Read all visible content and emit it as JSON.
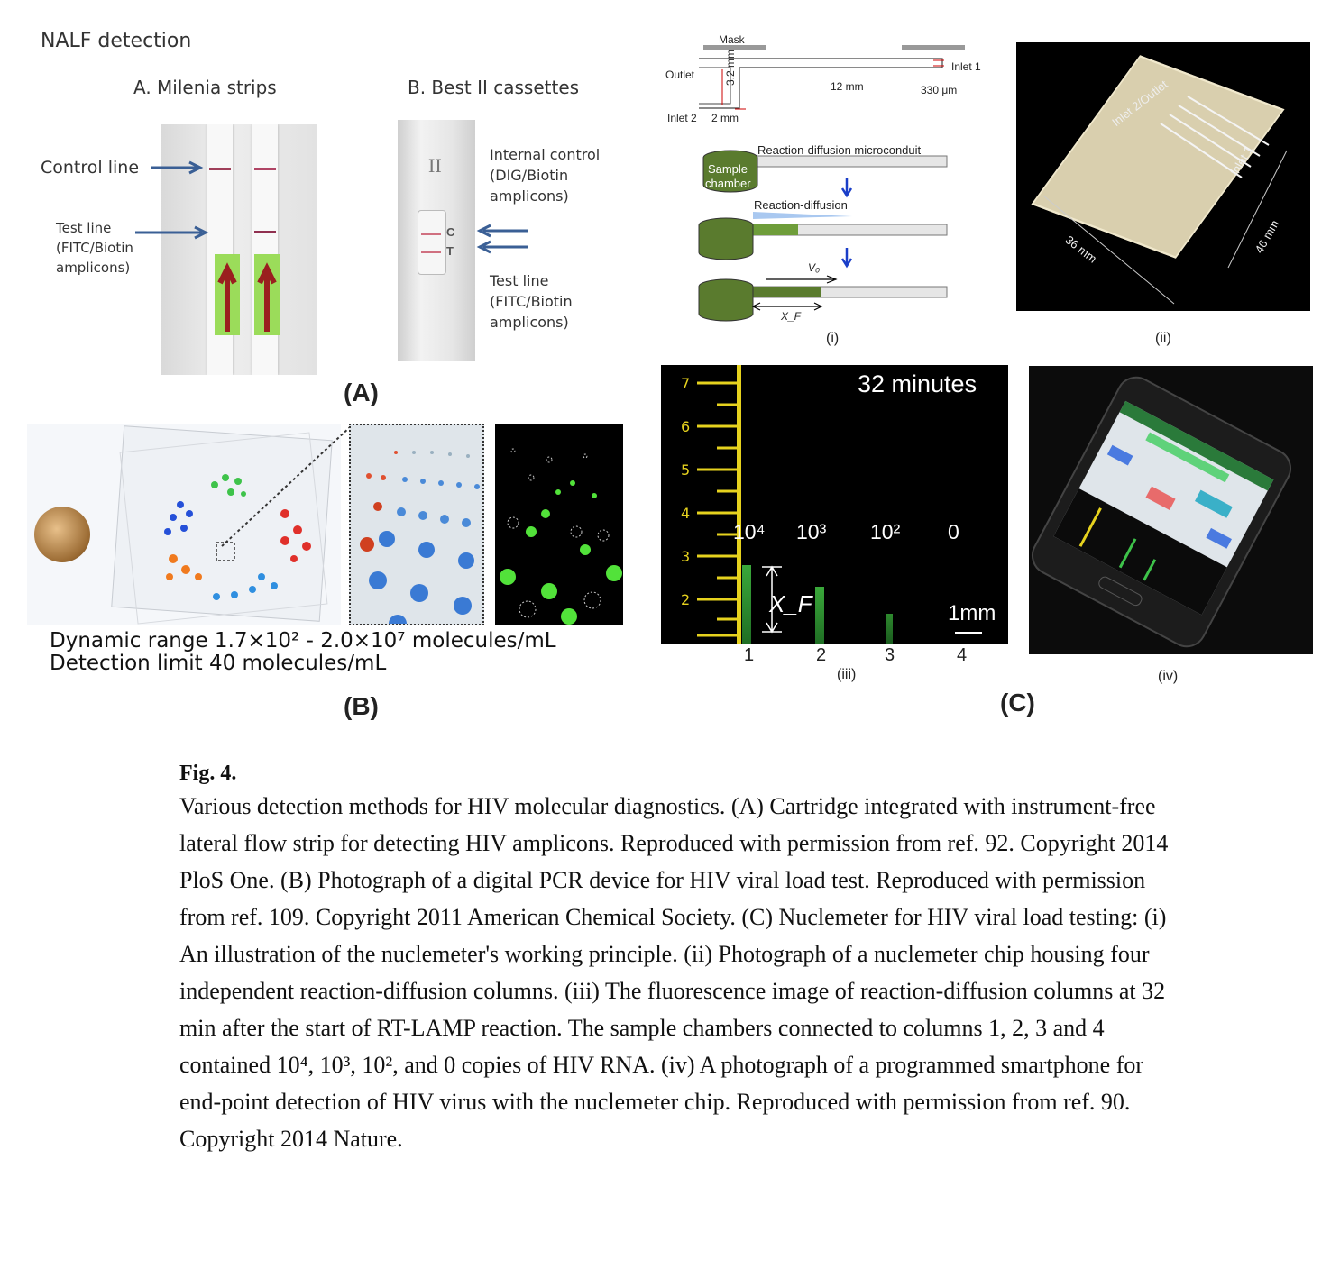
{
  "panel_a": {
    "title": "NALF detection",
    "sub_a": "A. Milenia strips",
    "sub_b": "B. Best II cassettes",
    "control_line": "Control line",
    "test_line_l1": "Test line",
    "test_line_l2": "(FITC/Biotin",
    "test_line_l3": "amplicons)",
    "internal_l1": "Internal control",
    "internal_l2": "(DIG/Biotin",
    "internal_l3": "amplicons)",
    "test2_l1": "Test line",
    "test2_l2": "(FITC/Biotin",
    "test2_l3": "amplicons)",
    "cassette_mark": "II",
    "c_mark": "C",
    "t_mark": "T",
    "letter": "(A)"
  },
  "panel_b": {
    "dynamic_range": "Dynamic range 1.7×10² - 2.0×10⁷ molecules/mL",
    "detection_limit": "Detection limit 40 molecules/mL",
    "letter": "(B)"
  },
  "panel_c": {
    "mask": "Mask",
    "outlet": "Outlet",
    "inlet1": "Inlet 1",
    "inlet2": "Inlet 2",
    "dim_32": "3.2 mm",
    "dim_2": "2 mm",
    "dim_12": "12 mm",
    "dim_330": "330 μm",
    "rdm": "Reaction-diffusion microconduit",
    "sample_l1": "Sample",
    "sample_l2": "chamber",
    "rd": "Reaction-diffusion",
    "v0": "V₀",
    "xf": "X_F",
    "i": "(i)",
    "chip_inlet": "Inlet 2/Outlet",
    "chip_inlet1": "Inlet 1",
    "chip_36": "36 mm",
    "chip_46": "46 mm",
    "ii": "(ii)",
    "minutes": "32 minutes",
    "c1": "10⁴",
    "c2": "10³",
    "c3": "10²",
    "c4": "0",
    "xf_big": "X_F",
    "scale": "1mm",
    "col1": "1",
    "col2": "2",
    "col3": "3",
    "col4": "4",
    "iii": "(iii)",
    "iv": "(iv)",
    "letter": "(C)"
  },
  "caption": {
    "label": "Fig. 4.",
    "text": "Various detection methods for HIV molecular diagnostics. (A) Cartridge integrated with instrument-free lateral flow strip for detecting HIV amplicons. Reproduced with permission from ref. 92. Copyright 2014 PloS One. (B) Photograph of a digital PCR device for HIV viral load test. Reproduced with permission from ref. 109. Copyright 2011 American Chemical Society. (C) Nuclemeter for HIV viral load testing: (i) An illustration of the nuclemeter's working principle. (ii) Photograph of a nuclemeter chip housing four independent reaction-diffusion columns. (iii) The fluorescence image of reaction-diffusion columns at 32 min after the start of RT-LAMP reaction. The sample chambers connected to columns 1, 2, 3 and 4 contained 10⁴, 10³, 10², and 0 copies of HIV RNA. (iv) A photograph of a programmed smartphone for end-point detection of HIV virus with the nuclemeter chip. Reproduced with permission from ref. 90. Copyright 2014 Nature."
  }
}
